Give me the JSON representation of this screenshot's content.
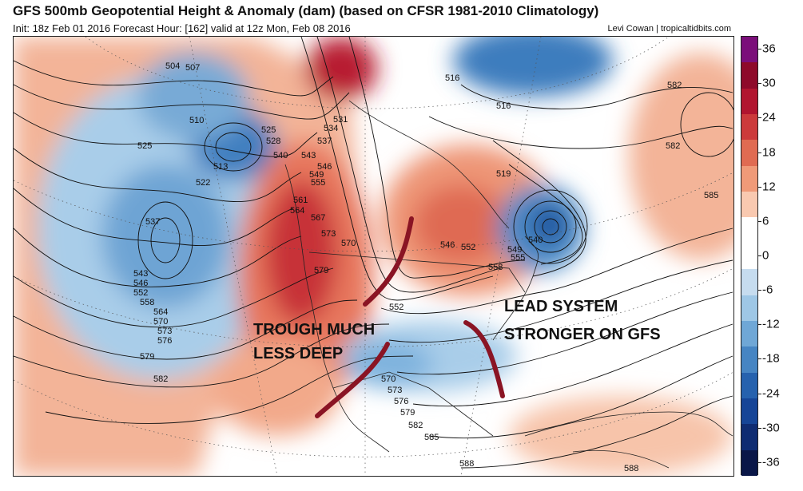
{
  "header": {
    "title": "GFS 500mb Geopotential Height & Anomaly (dam) (based on CFSR 1981-2010 Climatology)",
    "subtitle": "Init: 18z Feb 01 2016   Forecast Hour: [162]   valid at 12z Mon, Feb 08 2016",
    "credit": "Levi Cowan | tropicaltidbits.com"
  },
  "annotations": {
    "trough": [
      "TROUGH MUCH",
      "LESS DEEP"
    ],
    "lead": [
      "LEAD SYSTEM",
      "STRONGER ON GFS"
    ]
  },
  "contour_labels": [
    "504",
    "507",
    "510",
    "513",
    "516",
    "519",
    "522",
    "525",
    "528",
    "531",
    "534",
    "537",
    "540",
    "543",
    "546",
    "549",
    "552",
    "555",
    "558",
    "561",
    "564",
    "567",
    "570",
    "573",
    "576",
    "579",
    "582",
    "585",
    "588"
  ],
  "colorbar": {
    "ticks": [
      "36",
      "30",
      "24",
      "18",
      "12",
      "6",
      "0",
      "-6",
      "-12",
      "-18",
      "-24",
      "-30",
      "-36"
    ],
    "colors": [
      "#7b0f7a",
      "#8e0a2a",
      "#b1152f",
      "#cc3a3b",
      "#e06b52",
      "#f09a78",
      "#f9c9b0",
      "#ffffff",
      "#ffffff",
      "#c6dcef",
      "#9ec7e6",
      "#6fa7d6",
      "#4685c3",
      "#2662ae",
      "#164597",
      "#0f2c72",
      "#0a1748"
    ]
  },
  "colors": {
    "warm_anomaly": "#f0a282",
    "strong_warm": "#c73038",
    "cool_anomaly": "#9ec7e6",
    "strong_cool": "#3f7fc0",
    "annotation_line": "#8a1424"
  }
}
